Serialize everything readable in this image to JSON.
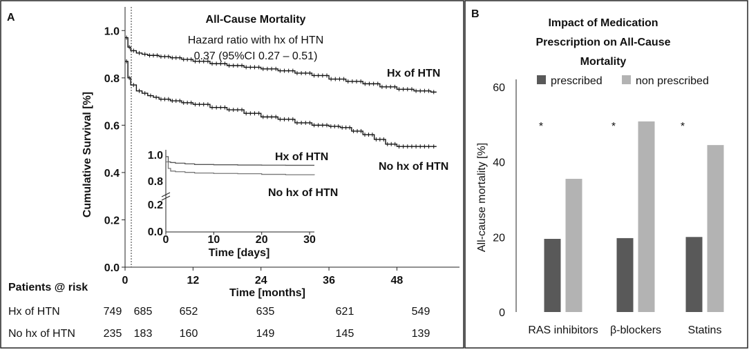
{
  "panel_a": {
    "letter": "A",
    "chart_data": {
      "type": "line",
      "title": "All-Cause Mortality",
      "annotation_line1": "Hazard ratio with hx of HTN",
      "annotation_line2": "0.37 (95%CI 0.27 – 0.51)",
      "xlabel": "Time [months]",
      "ylabel": "Cumulative Survival [%]",
      "xlim": [
        0,
        56
      ],
      "ylim": [
        0,
        1.1
      ],
      "xticks": [
        0,
        12,
        24,
        36,
        48
      ],
      "yticks": [
        0.0,
        0.2,
        0.4,
        0.6,
        0.8,
        1.0
      ],
      "ytick_labels": [
        "0.0",
        "0.2",
        "0.4",
        "0.6",
        "0.8",
        "1.0"
      ],
      "reference_line_x": 1,
      "series": [
        {
          "name": "Hx of HTN",
          "label": "Hx of HTN",
          "x": [
            0,
            0.5,
            1,
            2,
            3,
            4,
            6,
            8,
            10,
            12,
            15,
            18,
            21,
            24,
            27,
            30,
            33,
            36,
            39,
            42,
            45,
            48,
            51,
            54,
            55
          ],
          "y": [
            0.97,
            0.93,
            0.915,
            0.905,
            0.9,
            0.895,
            0.89,
            0.885,
            0.878,
            0.87,
            0.86,
            0.852,
            0.845,
            0.838,
            0.83,
            0.82,
            0.81,
            0.795,
            0.785,
            0.775,
            0.762,
            0.752,
            0.745,
            0.74,
            0.74
          ]
        },
        {
          "name": "No hx of HTN",
          "label": "No hx of HTN",
          "x": [
            0,
            0.5,
            1,
            2,
            3,
            4,
            5,
            6,
            8,
            10,
            12,
            15,
            18,
            21,
            24,
            27,
            30,
            33,
            36,
            38,
            40,
            42,
            44,
            46,
            48,
            51,
            54,
            55
          ],
          "y": [
            0.87,
            0.8,
            0.77,
            0.745,
            0.735,
            0.725,
            0.718,
            0.71,
            0.703,
            0.695,
            0.688,
            0.675,
            0.665,
            0.65,
            0.635,
            0.625,
            0.61,
            0.6,
            0.595,
            0.59,
            0.575,
            0.56,
            0.54,
            0.52,
            0.51,
            0.51,
            0.51,
            0.51
          ]
        }
      ],
      "inset": {
        "xlabel": "Time [days]",
        "xticks": [
          0,
          10,
          20,
          30
        ],
        "ytick_labels": [
          "1.0",
          "0.8",
          "0.2",
          "0.0"
        ],
        "xlim": [
          0,
          31
        ],
        "series": [
          {
            "name": "Hx of HTN",
            "label": "Hx of HTN",
            "x": [
              0,
              0.5,
              1,
              2,
              4,
              6,
              10,
              15,
              20,
              25,
              31
            ],
            "y": [
              0.99,
              0.95,
              0.945,
              0.94,
              0.935,
              0.93,
              0.928,
              0.926,
              0.925,
              0.924,
              0.924
            ]
          },
          {
            "name": "No hx of HTN",
            "label": "No hx of HTN",
            "x": [
              0,
              0.5,
              1,
              2,
              4,
              6,
              10,
              15,
              20,
              25,
              31
            ],
            "y": [
              0.95,
              0.9,
              0.88,
              0.875,
              0.87,
              0.865,
              0.862,
              0.86,
              0.855,
              0.852,
              0.85
            ]
          }
        ]
      }
    },
    "risk_table": {
      "title": "Patients @ risk",
      "rows": [
        {
          "label": "Hx of HTN",
          "values": [
            "749",
            "685",
            "652",
            "635",
            "621",
            "549"
          ]
        },
        {
          "label": "No hx of HTN",
          "values": [
            "235",
            "183",
            "160",
            "149",
            "145",
            "139"
          ]
        }
      ]
    }
  },
  "panel_b": {
    "letter": "B",
    "chart_data": {
      "type": "bar",
      "title_lines": [
        "Impact of Medication",
        "Prescription on All-Cause",
        "Mortality"
      ],
      "categories": [
        "RAS inhibitors",
        "β-blockers",
        "Statins"
      ],
      "series": [
        {
          "name": "prescribed",
          "color": "#595959",
          "values": [
            19.5,
            19.7,
            20
          ]
        },
        {
          "name": "non prescribed",
          "color": "#b3b3b3",
          "values": [
            35.5,
            50.8,
            44.5
          ]
        }
      ],
      "significance_marks": [
        "*",
        "*",
        "*"
      ],
      "ylabel": "All-cause  mortality [%]",
      "ylim": [
        0,
        62
      ],
      "yticks": [
        0,
        20,
        40,
        60
      ]
    }
  }
}
